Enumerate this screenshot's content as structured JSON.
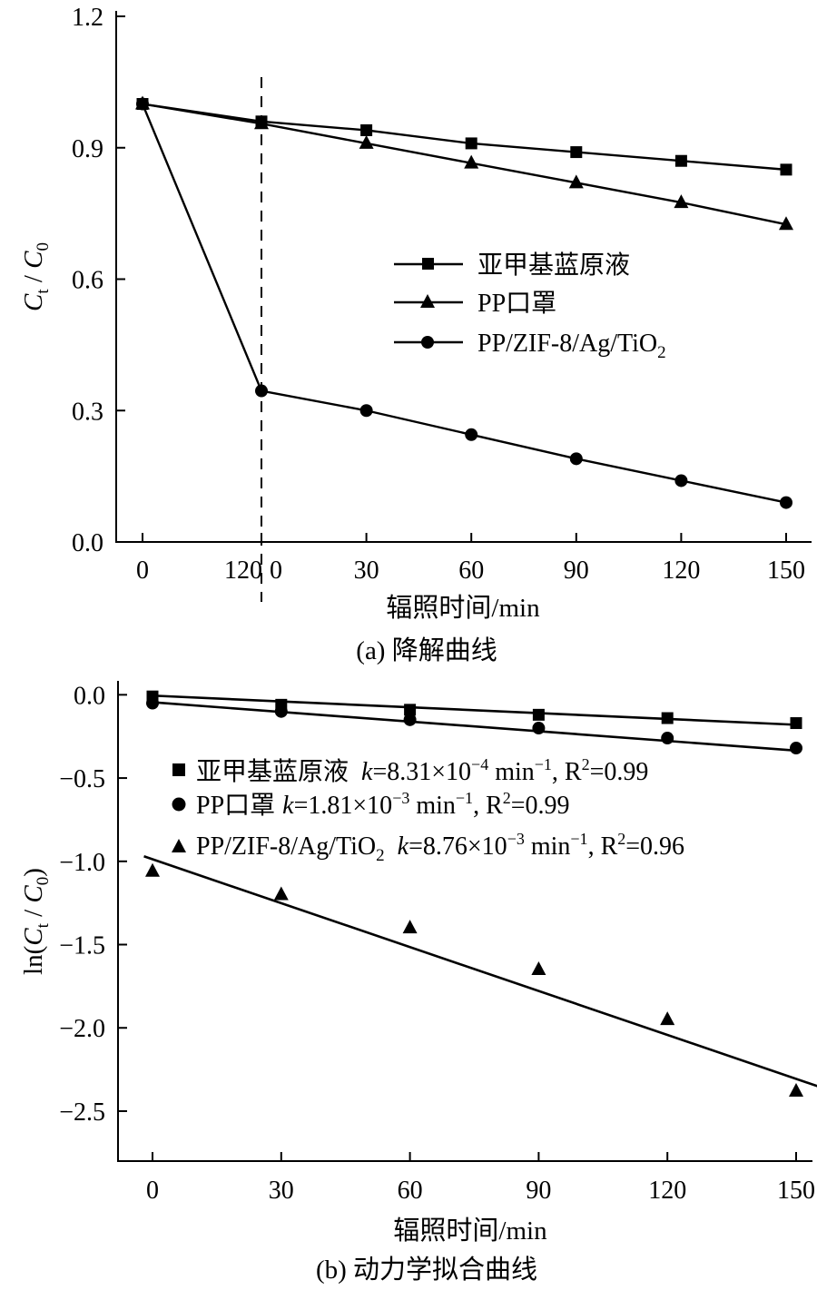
{
  "chart_data": [
    {
      "type": "line",
      "caption": "(a) 降解曲线",
      "xlabel": "辐照时间/min",
      "ylabel_main": "C",
      "ylabel_sub1": "t",
      "ylabel_sep": " / ",
      "ylabel_main2": "C",
      "ylabel_sub2": "0",
      "ylim": [
        0,
        1.2
      ],
      "yticks": [
        "0.0",
        "0.3",
        "0.6",
        "0.9",
        "1.2"
      ],
      "ytick_values": [
        0,
        0.3,
        0.6,
        0.9,
        1.2
      ],
      "xtick_labels": [
        "0",
        "120",
        "0",
        "30",
        "60",
        "90",
        "120",
        "150"
      ],
      "dark_phase": {
        "start": 0,
        "end": 120,
        "tick_label_start": "0",
        "tick_label_end": "120"
      },
      "light_phase_x": [
        0,
        30,
        60,
        90,
        120,
        150
      ],
      "series": [
        {
          "name": "亚甲基蓝原液",
          "marker": "square",
          "dark_values": [
            1.0,
            0.96
          ],
          "light_values": [
            0.96,
            0.94,
            0.91,
            0.89,
            0.87,
            0.85
          ]
        },
        {
          "name": "PP口罩",
          "marker": "triangle",
          "dark_values": [
            1.0,
            0.955
          ],
          "light_values": [
            0.955,
            0.91,
            0.865,
            0.82,
            0.775,
            0.725
          ]
        },
        {
          "name": "PP/ZIF-8/Ag/TiO",
          "name_sub": "2",
          "marker": "circle",
          "dark_values": [
            1.0,
            0.345
          ],
          "light_values": [
            0.345,
            0.3,
            0.245,
            0.19,
            0.14,
            0.09
          ]
        }
      ],
      "legend_position": "center-right"
    },
    {
      "type": "scatter",
      "caption": "(b) 动力学拟合曲线",
      "xlabel": "辐照时间/min",
      "ylabel_prefix": "ln(",
      "ylabel_main": "C",
      "ylabel_sub1": "t",
      "ylabel_sep": " / ",
      "ylabel_main2": "C",
      "ylabel_sub2": "0",
      "ylabel_suffix": ")",
      "ylim": [
        -2.8,
        0.1
      ],
      "yticks": [
        "0.0",
        "−0.5",
        "−1.0",
        "−1.5",
        "−2.0",
        "−2.5"
      ],
      "ytick_values": [
        0,
        -0.5,
        -1.0,
        -1.5,
        -2.0,
        -2.5
      ],
      "xlim": [
        -8,
        155
      ],
      "xticks": [
        "0",
        "30",
        "60",
        "90",
        "120",
        "150"
      ],
      "xtick_values": [
        0,
        30,
        60,
        90,
        120,
        150
      ],
      "series": [
        {
          "name": "亚甲基蓝原液",
          "marker": "square",
          "x": [
            0,
            30,
            60,
            90,
            120,
            150
          ],
          "y": [
            -0.01,
            -0.06,
            -0.09,
            -0.12,
            -0.14,
            -0.17
          ],
          "fit": [
            [
              0,
              -0.005
            ],
            [
              150,
              -0.18
            ]
          ],
          "k_prefix": "k",
          "k_text": "=8.31×10",
          "k_exp": "−4",
          "k_unit": " min",
          "k_unit_exp": "−1",
          "r2_prefix": ", R",
          "r2_exp": "2",
          "r2_text": "=0.99"
        },
        {
          "name": "PP口罩",
          "marker": "circle",
          "x": [
            0,
            30,
            60,
            90,
            120,
            150
          ],
          "y": [
            -0.05,
            -0.1,
            -0.15,
            -0.2,
            -0.26,
            -0.32
          ],
          "fit": [
            [
              0,
              -0.045
            ],
            [
              150,
              -0.335
            ]
          ],
          "k_prefix": "k",
          "k_text": "=1.81×10",
          "k_exp": "−3",
          "k_unit": " min",
          "k_unit_exp": "−1",
          "r2_prefix": ", R",
          "r2_exp": "2",
          "r2_text": "=0.99"
        },
        {
          "name": "PP/ZIF-8/Ag/TiO",
          "name_sub": "2",
          "marker": "triangle",
          "x": [
            0,
            30,
            60,
            90,
            120,
            150
          ],
          "y": [
            -1.06,
            -1.2,
            -1.4,
            -1.65,
            -1.95,
            -2.38
          ],
          "fit": [
            [
              -2,
              -0.97
            ],
            [
              155,
              -2.35
            ]
          ],
          "k_prefix": "k",
          "k_text": "=8.76×10",
          "k_exp": "−3",
          "k_unit": " min",
          "k_unit_exp": "−1",
          "r2_prefix": ", R",
          "r2_exp": "2",
          "r2_text": "=0.96"
        }
      ],
      "legend_position": "top-center"
    }
  ]
}
